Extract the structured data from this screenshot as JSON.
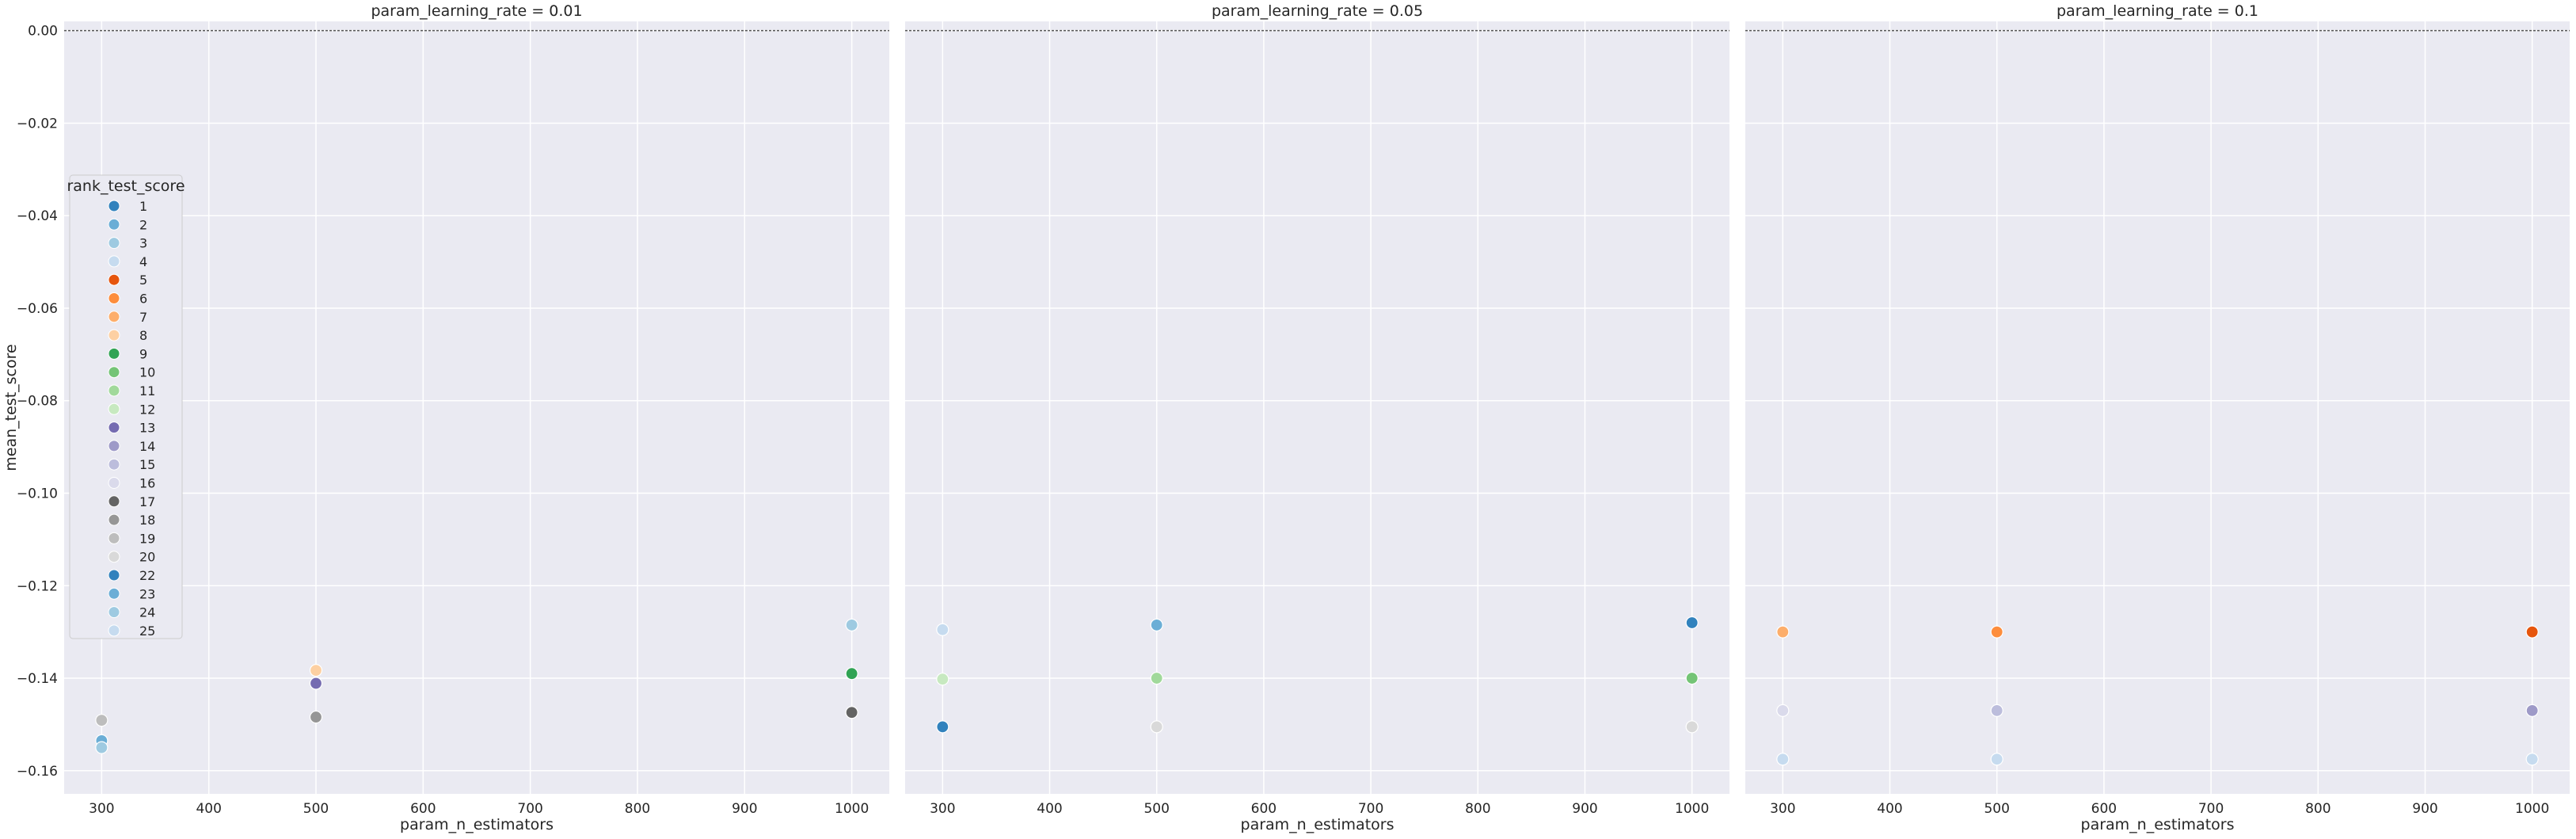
{
  "chart_data": {
    "type": "scatter",
    "facet_variable": "param_learning_rate",
    "xlabel": "param_n_estimators",
    "ylabel": "mean_test_score",
    "xlim": [
      265,
      1035
    ],
    "ylim": [
      -0.165,
      0.002
    ],
    "x_ticks": [
      300,
      400,
      500,
      600,
      700,
      800,
      900,
      1000
    ],
    "y_ticks": [
      0.0,
      -0.02,
      -0.04,
      -0.06,
      -0.08,
      -0.1,
      -0.12,
      -0.14,
      -0.16
    ],
    "grid": true,
    "reference_line_y": 0.0,
    "facets": [
      {
        "title": "param_learning_rate = 0.01",
        "points": [
          {
            "x": 300,
            "y": -0.1491,
            "rank": 19
          },
          {
            "x": 300,
            "y": -0.1535,
            "rank": 23
          },
          {
            "x": 300,
            "y": -0.155,
            "rank": 24
          },
          {
            "x": 500,
            "y": -0.1383,
            "rank": 8
          },
          {
            "x": 500,
            "y": -0.1411,
            "rank": 13
          },
          {
            "x": 500,
            "y": -0.1484,
            "rank": 18
          },
          {
            "x": 1000,
            "y": -0.1285,
            "rank": 3
          },
          {
            "x": 1000,
            "y": -0.139,
            "rank": 9
          },
          {
            "x": 1000,
            "y": -0.1474,
            "rank": 17
          }
        ]
      },
      {
        "title": "param_learning_rate = 0.05",
        "points": [
          {
            "x": 300,
            "y": -0.1295,
            "rank": 4
          },
          {
            "x": 300,
            "y": -0.1402,
            "rank": 12
          },
          {
            "x": 300,
            "y": -0.1505,
            "rank": 22
          },
          {
            "x": 500,
            "y": -0.1285,
            "rank": 2
          },
          {
            "x": 500,
            "y": -0.14,
            "rank": 11
          },
          {
            "x": 500,
            "y": -0.1505,
            "rank": 20
          },
          {
            "x": 1000,
            "y": -0.128,
            "rank": 1
          },
          {
            "x": 1000,
            "y": -0.14,
            "rank": 10
          },
          {
            "x": 1000,
            "y": -0.1505,
            "rank": 20
          }
        ]
      },
      {
        "title": "param_learning_rate = 0.1",
        "points": [
          {
            "x": 300,
            "y": -0.13,
            "rank": 7
          },
          {
            "x": 300,
            "y": -0.147,
            "rank": 16
          },
          {
            "x": 300,
            "y": -0.1575,
            "rank": 25
          },
          {
            "x": 500,
            "y": -0.13,
            "rank": 6
          },
          {
            "x": 500,
            "y": -0.147,
            "rank": 15
          },
          {
            "x": 500,
            "y": -0.1575,
            "rank": 25
          },
          {
            "x": 1000,
            "y": -0.13,
            "rank": 5
          },
          {
            "x": 1000,
            "y": -0.147,
            "rank": 14
          },
          {
            "x": 1000,
            "y": -0.1575,
            "rank": 25
          }
        ]
      }
    ],
    "legend": {
      "title": "rank_test_score",
      "placement": "left, inside first panel",
      "entries": [
        {
          "label": "1",
          "color": "#3182bd"
        },
        {
          "label": "2",
          "color": "#6baed6"
        },
        {
          "label": "3",
          "color": "#9ecae1"
        },
        {
          "label": "4",
          "color": "#c6dbef"
        },
        {
          "label": "5",
          "color": "#e6550d"
        },
        {
          "label": "6",
          "color": "#fd8d3c"
        },
        {
          "label": "7",
          "color": "#fdae6b"
        },
        {
          "label": "8",
          "color": "#fdd0a2"
        },
        {
          "label": "9",
          "color": "#31a354"
        },
        {
          "label": "10",
          "color": "#74c476"
        },
        {
          "label": "11",
          "color": "#a1d99b"
        },
        {
          "label": "12",
          "color": "#c7e9c0"
        },
        {
          "label": "13",
          "color": "#756bb1"
        },
        {
          "label": "14",
          "color": "#9e9ac8"
        },
        {
          "label": "15",
          "color": "#bcbddc"
        },
        {
          "label": "16",
          "color": "#dadaeb"
        },
        {
          "label": "17",
          "color": "#636363"
        },
        {
          "label": "18",
          "color": "#969696"
        },
        {
          "label": "19",
          "color": "#bdbdbd"
        },
        {
          "label": "20",
          "color": "#d9d9d9"
        },
        {
          "label": "22",
          "color": "#3182bd"
        },
        {
          "label": "23",
          "color": "#6baed6"
        },
        {
          "label": "24",
          "color": "#9ecae1"
        },
        {
          "label": "25",
          "color": "#c6dbef"
        }
      ]
    },
    "colors": {
      "panel_background": "#eaeaf2",
      "grid": "#ffffff",
      "reference_line": "#555555",
      "text": "#262626"
    }
  }
}
